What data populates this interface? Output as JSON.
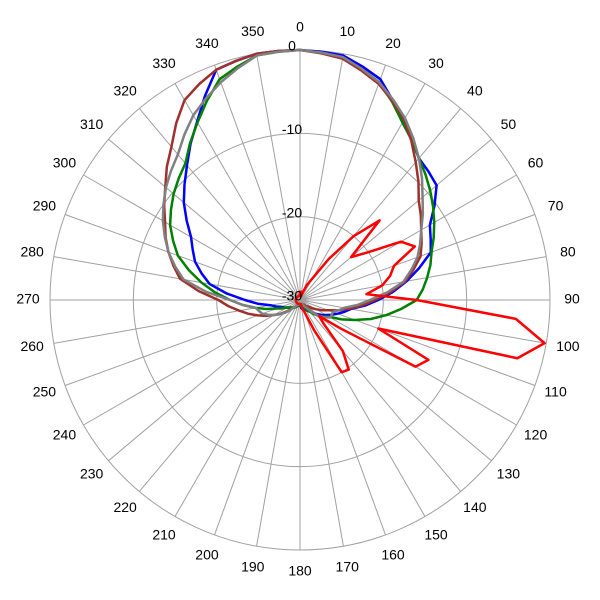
{
  "chart_data": {
    "type": "polar",
    "x": [
      0,
      5,
      10,
      15,
      20,
      25,
      30,
      35,
      40,
      45,
      50,
      55,
      60,
      65,
      70,
      75,
      80,
      85,
      90,
      95,
      100,
      105,
      110,
      115,
      120,
      125,
      130,
      135,
      140,
      145,
      150,
      155,
      160,
      165,
      170,
      175,
      180,
      185,
      190,
      195,
      200,
      205,
      210,
      215,
      220,
      225,
      230,
      235,
      240,
      245,
      250,
      255,
      260,
      265,
      270,
      275,
      280,
      285,
      290,
      295,
      300,
      305,
      310,
      315,
      320,
      325,
      330,
      335,
      340,
      345,
      350,
      355
    ],
    "xticks": [
      0,
      10,
      20,
      30,
      40,
      50,
      60,
      70,
      80,
      90,
      100,
      110,
      120,
      130,
      140,
      150,
      160,
      170,
      180,
      190,
      200,
      210,
      220,
      230,
      240,
      250,
      260,
      270,
      280,
      290,
      300,
      310,
      320,
      330,
      340,
      350
    ],
    "ylim": [
      -30,
      0
    ],
    "yticks": [
      -30,
      -20,
      -10,
      0
    ],
    "grid": true,
    "series": [
      {
        "color": "#0000ff",
        "values": [
          0,
          -0.1,
          -0.2,
          -1,
          -1.8,
          -3.6,
          -5.4,
          -6.6,
          -7.8,
          -8.2,
          -8.6,
          -10.3,
          -12,
          -12.7,
          -13.3,
          -15.2,
          -17,
          -18.8,
          -20.6,
          -22.2,
          -23.8,
          -24.5,
          -25.2,
          -25.8,
          -26.4,
          -26.9,
          -27.4,
          -27.8,
          -28.2,
          -28.4,
          -28.6,
          -28.7,
          -28.8,
          -28.9,
          -29,
          -29.2,
          -29.3,
          -29.3,
          -29.3,
          -29.3,
          -29.3,
          -29.2,
          -29,
          -28.9,
          -28.8,
          -28.7,
          -28.6,
          -28.4,
          -28.2,
          -27.9,
          -27.6,
          -27,
          -26.4,
          -24.9,
          -23.4,
          -21.2,
          -19,
          -17.8,
          -16.6,
          -15.8,
          -14.9,
          -13.4,
          -11.8,
          -10.4,
          -8.9,
          -7.1,
          -5.3,
          -3,
          -0.6,
          -0.3,
          0,
          0
        ]
      },
      {
        "color": "#008000",
        "values": [
          0,
          -0.2,
          -0.5,
          -1.3,
          -2.2,
          -3.8,
          -5.4,
          -6.6,
          -7.8,
          -8.7,
          -9.6,
          -10.5,
          -11.4,
          -12.3,
          -13.2,
          -13.8,
          -14.5,
          -15.2,
          -16,
          -17.8,
          -19.5,
          -21.2,
          -23,
          -24.5,
          -26,
          -26.5,
          -27,
          -27.6,
          -28.2,
          -28.5,
          -28.8,
          -28.9,
          -29,
          -29.2,
          -29.3,
          -29.3,
          -29.3,
          -29.3,
          -29.3,
          -29.3,
          -29.3,
          -29.2,
          -29,
          -28.9,
          -28.8,
          -28.7,
          -28.6,
          -28.4,
          -28.2,
          -27.6,
          -27,
          -25.8,
          -24.6,
          -23.1,
          -21.6,
          -19.8,
          -18,
          -16.2,
          -14.4,
          -13.2,
          -12,
          -11.1,
          -10.2,
          -9.4,
          -8.6,
          -7,
          -5.4,
          -3.6,
          -1.8,
          -1,
          -0.2,
          -0.1
        ]
      },
      {
        "color": "#a0302d",
        "values": [
          0,
          -0.3,
          -0.6,
          -1.5,
          -2.4,
          -3.7,
          -5,
          -6.7,
          -8.4,
          -9.9,
          -11.4,
          -12.3,
          -13.2,
          -13.9,
          -14.6,
          -15.9,
          -17.2,
          -19.1,
          -21,
          -22.5,
          -24,
          -25.2,
          -26.4,
          -27.1,
          -27.8,
          -28.3,
          -28.8,
          -29,
          -29.3,
          -29.3,
          -29.4,
          -29.4,
          -29.5,
          -29.5,
          -29.5,
          -29.5,
          -29.5,
          -29.5,
          -29.5,
          -29.5,
          -29.4,
          -29.3,
          -29.3,
          -29,
          -28.8,
          -28.3,
          -27.8,
          -27.1,
          -26.4,
          -25.5,
          -24.6,
          -23.6,
          -22.6,
          -21.4,
          -20.2,
          -17.8,
          -15.4,
          -14.3,
          -13.2,
          -12.2,
          -11.3,
          -10.1,
          -8.9,
          -7.4,
          -6,
          -4.1,
          -2.3,
          -1.4,
          -0.6,
          -0.3,
          0,
          0
        ]
      },
      {
        "color": "#808080",
        "values": [
          0,
          -0.2,
          -0.4,
          -1.3,
          -2.2,
          -3.5,
          -4.8,
          -6.3,
          -7.8,
          -9.3,
          -10.8,
          -12,
          -13.2,
          -14.1,
          -15,
          -16.2,
          -17.4,
          -19.5,
          -21.6,
          -23.1,
          -24.6,
          -25.2,
          -25.8,
          -25.8,
          -25.8,
          -26.4,
          -27,
          -27.9,
          -28.8,
          -29.1,
          -29.4,
          -29.5,
          -29.5,
          -29.5,
          -29.5,
          -29.5,
          -29.5,
          -29.5,
          -29.5,
          -29.5,
          -29.4,
          -29.4,
          -29.3,
          -29,
          -28.8,
          -28.2,
          -27.6,
          -27,
          -26.4,
          -25.8,
          -25.2,
          -24.9,
          -24.6,
          -23.1,
          -21.6,
          -18.7,
          -15.8,
          -14.5,
          -13.2,
          -12.1,
          -11,
          -10,
          -9,
          -8.1,
          -7.2,
          -5.8,
          -4.4,
          -3.3,
          -2.2,
          -1.2,
          -0.2,
          -0.1
        ]
      },
      {
        "color": "#ff0000",
        "values": [
          -29,
          -29.5,
          -29,
          -29.5,
          -29,
          -28,
          -27,
          -24,
          -20,
          -16.5,
          -22,
          -20,
          -16,
          -14.8,
          -18,
          -18.8,
          -20,
          -22,
          -16,
          -4,
          -0.2,
          -3,
          -20,
          -13,
          -14,
          -24,
          -27,
          -26,
          -22,
          -19.8,
          -20,
          -26,
          -28.5,
          -29,
          -29.5,
          -29.5,
          -29.5,
          -29.5,
          -29.5,
          -29.5,
          -29.5,
          -29.5,
          -29.5,
          -29.5,
          -29.5,
          -29.5,
          -29.5,
          -29.5,
          -29.5,
          -29.5,
          -29.5,
          -29.5,
          -29.5,
          -29.5,
          -29.5,
          -29.5,
          -29.5,
          -29.5,
          -29.5,
          -29.5,
          -29.5,
          -29.5,
          -29.5,
          -29.5,
          -29.5,
          -29.5,
          -29.5,
          -29.5,
          -29.5,
          -29.5,
          -29.5,
          -29.5
        ]
      }
    ]
  }
}
